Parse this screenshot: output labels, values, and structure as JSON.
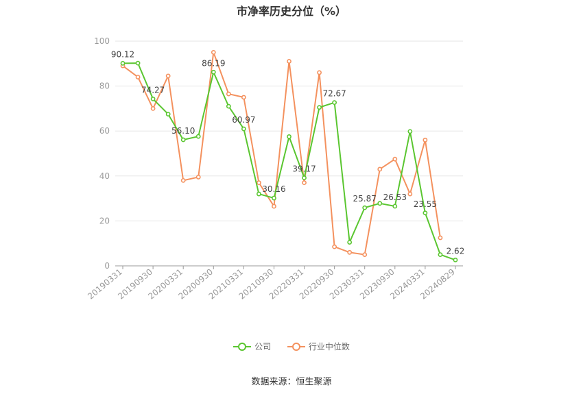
{
  "chart_data": {
    "type": "line",
    "title": "市净率历史分位（%）",
    "xlabel": "",
    "ylabel": "",
    "ylim": [
      0,
      100
    ],
    "yticks": [
      0,
      20,
      40,
      60,
      80,
      100
    ],
    "x": [
      "20190331",
      "20190630",
      "20190930",
      "20191231",
      "20200331",
      "20200630",
      "20200930",
      "20201231",
      "20210331",
      "20210630",
      "20210930",
      "20211231",
      "20220331",
      "20220630",
      "20220930",
      "20221231",
      "20230331",
      "20230630",
      "20230930",
      "20231231",
      "20240331",
      "20240630",
      "20240829"
    ],
    "x_tick_labels": [
      "20190331",
      "20190930",
      "20200331",
      "20200930",
      "20210331",
      "20210930",
      "20220331",
      "20220930",
      "20230331",
      "20230930",
      "20240331",
      "20240829"
    ],
    "series": [
      {
        "name": "公司",
        "color": "#5ac630",
        "values": [
          90.12,
          90.2,
          74.27,
          67.5,
          56.1,
          57.6,
          86.19,
          71.0,
          60.97,
          32.0,
          30.16,
          57.5,
          39.17,
          70.5,
          72.67,
          10.5,
          25.87,
          27.8,
          26.53,
          59.8,
          23.55,
          5.0,
          2.62
        ],
        "labels": {
          "0": "90.12",
          "2": "74.27",
          "4": "56.10",
          "6": "86.19",
          "8": "60.97",
          "10": "30.16",
          "12": "39.17",
          "14": "72.67",
          "16": "25.87",
          "18": "26.53",
          "20": "23.55",
          "22": "2.62"
        }
      },
      {
        "name": "行业中位数",
        "color": "#f4915e",
        "values": [
          89.0,
          84.0,
          70.0,
          84.5,
          38.0,
          39.5,
          95.0,
          76.5,
          75.0,
          37.0,
          26.5,
          91.0,
          37.0,
          86.0,
          8.5,
          6.0,
          5.0,
          43.0,
          47.5,
          32.0,
          56.0,
          12.5,
          null
        ]
      }
    ],
    "legend_position": "bottom",
    "grid": true
  },
  "source": "数据来源：恒生聚源"
}
